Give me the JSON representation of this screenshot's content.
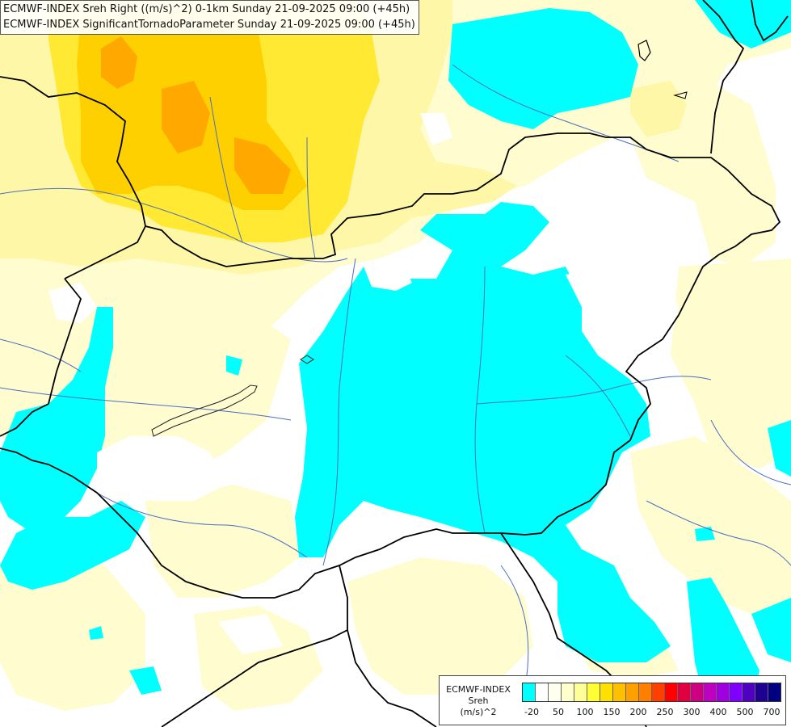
{
  "header": {
    "line1": "ECMWF-INDEX Sreh Right ((m/s)^2) 0-1km Sunday 21-09-2025 09:00 (+45h)",
    "line2": "ECMWF-INDEX SignificantTornadoParameter Sunday 21-09-2025 09:00 (+45h)"
  },
  "legend": {
    "title_line1": "ECMWF-INDEX",
    "title_line2": "Sreh",
    "title_line3": "(m/s)^2",
    "colors": [
      "#00ffff",
      "#ffffff",
      "#fffff0",
      "#ffffcc",
      "#ffff99",
      "#ffff33",
      "#ffe000",
      "#ffc000",
      "#ffa000",
      "#ff7f00",
      "#ff4000",
      "#ff0000",
      "#e00040",
      "#cc0080",
      "#c000c0",
      "#a000e0",
      "#8000ff",
      "#5000c0",
      "#200090",
      "#000080"
    ],
    "ticks": [
      "-20",
      "50",
      "100",
      "150",
      "200",
      "250",
      "300",
      "400",
      "500",
      "700"
    ]
  }
}
